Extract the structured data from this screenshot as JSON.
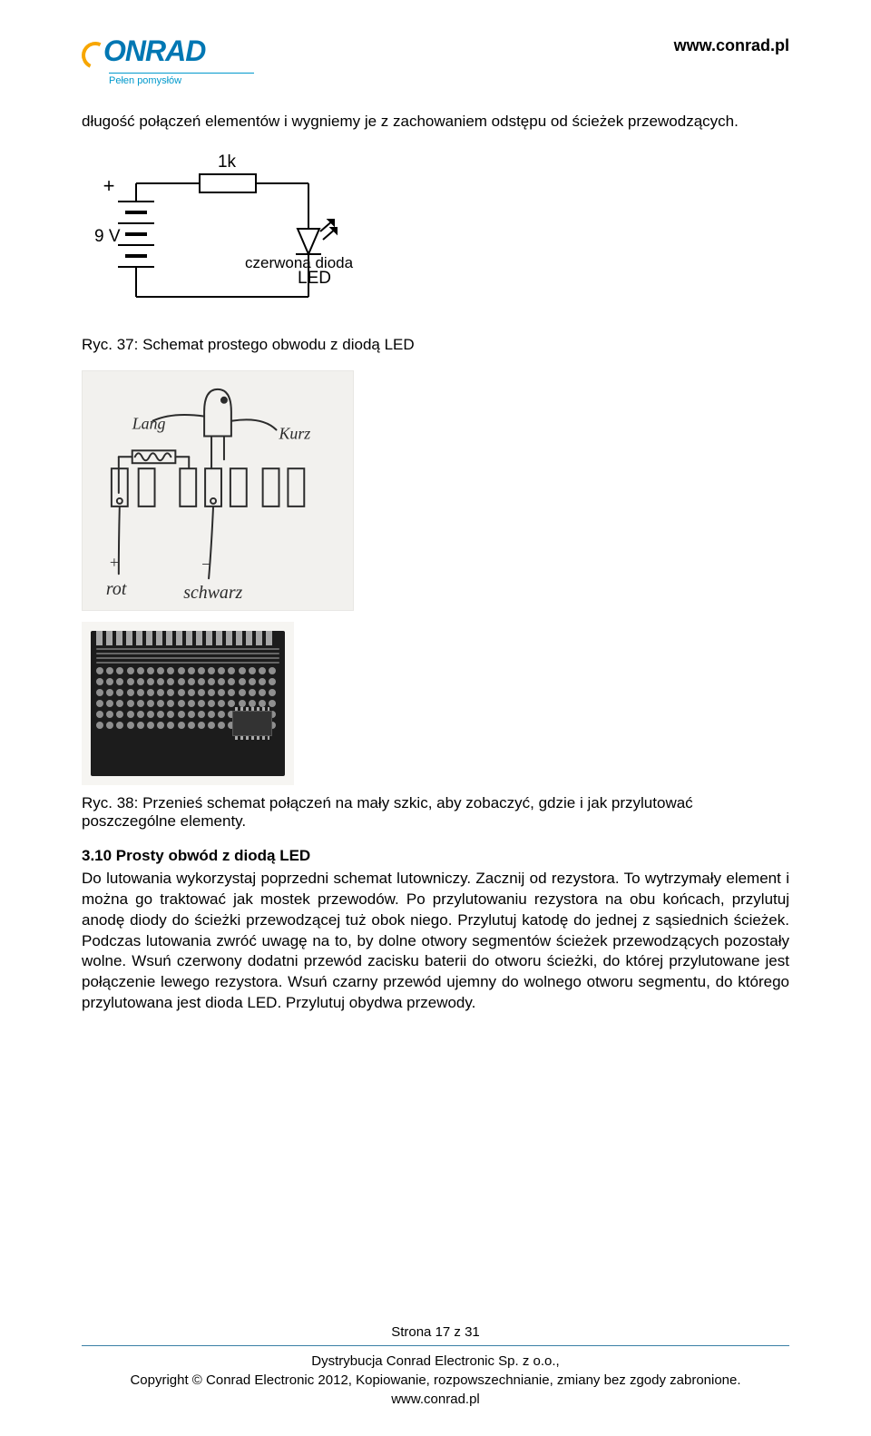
{
  "header": {
    "logo_text": "ONRAD",
    "tagline": "Pełen pomysłów",
    "url": "www.conrad.pl",
    "logo_color": "#0077b3",
    "swoosh_color": "#f7a600",
    "tagline_color": "#0099cc"
  },
  "intro_para": "długość połączeń elementów i wygniemy je z zachowaniem odstępu od ścieżek przewodzących.",
  "circuit": {
    "resistor_label": "1k",
    "voltage_plus": "+",
    "voltage_label": "9 V",
    "led_label": "LED",
    "overlay_text": "czerwona dioda",
    "line_color": "#000000",
    "font_size": 19
  },
  "caption_37": "Ryc. 37: Schemat prostego obwodu z diodą LED",
  "sketch": {
    "labels": {
      "lang": "Lang",
      "kurz": "Kurz",
      "rot_plus": "+",
      "rot": "rot",
      "schwarz_minus": "−",
      "schwarz": "schwarz"
    },
    "bg": "#f2f1ee",
    "stroke": "#2b2b2b"
  },
  "pcb": {
    "bg": "#f6f5f2",
    "board_color": "#1c1c1c",
    "pad_color": "#8f8f8f",
    "conn_color": "#a8a8a8",
    "trace_color": "#666666",
    "conn_count": 18,
    "pad_cols": 18,
    "pad_rows": 6,
    "trace_rows": 4
  },
  "caption_38": "Ryc. 38: Przenieś schemat połączeń na mały szkic, aby zobaczyć, gdzie i jak przylutować poszczególne elementy.",
  "section": {
    "heading": "3.10 Prosty obwód z diodą LED",
    "body": "Do lutowania wykorzystaj poprzedni schemat lutowniczy. Zacznij od rezystora. To wytrzymały element i można go traktować jak mostek przewodów. Po przylutowaniu rezystora na obu końcach, przylutuj anodę diody do ścieżki przewodzącej tuż obok niego. Przylutuj katodę do jednej z sąsiednich ścieżek. Podczas lutowania zwróć uwagę na to, by dolne otwory segmentów ścieżek przewodzących pozostały wolne. Wsuń czerwony dodatni przewód zacisku baterii do otworu ścieżki, do której przylutowane jest połączenie lewego rezystora. Wsuń czarny przewód ujemny do wolnego otworu segmentu, do którego przylutowana jest dioda LED. Przylutuj obydwa przewody."
  },
  "footer": {
    "page_label": "Strona 17 z 31",
    "hr_color": "#3a7fa6",
    "line1": "Dystrybucja Conrad Electronic Sp. z o.o.,",
    "line2": "Copyright © Conrad Electronic 2012, Kopiowanie, rozpowszechnianie, zmiany bez zgody zabronione.",
    "line3": "www.conrad.pl"
  }
}
